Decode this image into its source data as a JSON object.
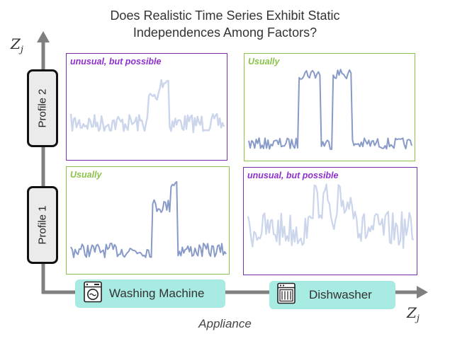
{
  "title": {
    "line1": "Does Realistic Time Series Exhibit Static",
    "line2": "Independences Among Factors?"
  },
  "axes": {
    "y_symbol": "Z",
    "y_subscript": "j",
    "x_symbol": "Z",
    "x_subscript": "j",
    "x_name": "Appliance"
  },
  "profiles": [
    {
      "label": "Profile 2"
    },
    {
      "label": "Profile 1"
    }
  ],
  "appliances": [
    {
      "label": "Washing Machine",
      "icon": "washing-machine-icon"
    },
    {
      "label": "Dishwasher",
      "icon": "dishwasher-icon"
    }
  ],
  "panels": [
    {
      "id": "p2-washer",
      "tag": "unusual, but possible",
      "tag_color": "#8f2fd0",
      "border_color": "#7a2fb0",
      "pattern": "faded single spike"
    },
    {
      "id": "p2-dish",
      "tag": "Usually",
      "tag_color": "#8bc34a",
      "border_color": "#8bc34a",
      "pattern": "two plateaus"
    },
    {
      "id": "p1-washer",
      "tag": "Usually",
      "tag_color": "#8bc34a",
      "border_color": "#8bc34a",
      "pattern": "single spike"
    },
    {
      "id": "p1-dish",
      "tag": "unusual, but possible",
      "tag_color": "#8f2fd0",
      "border_color": "#7a2fb0",
      "pattern": "faded noisy plateaus"
    }
  ],
  "colors": {
    "axis": "#808080",
    "signal": "#7a8fc2",
    "signal_faded": "#c8d3ea",
    "appliance_fill": "#a8ebe3",
    "profile_fill": "#ebebeb"
  }
}
